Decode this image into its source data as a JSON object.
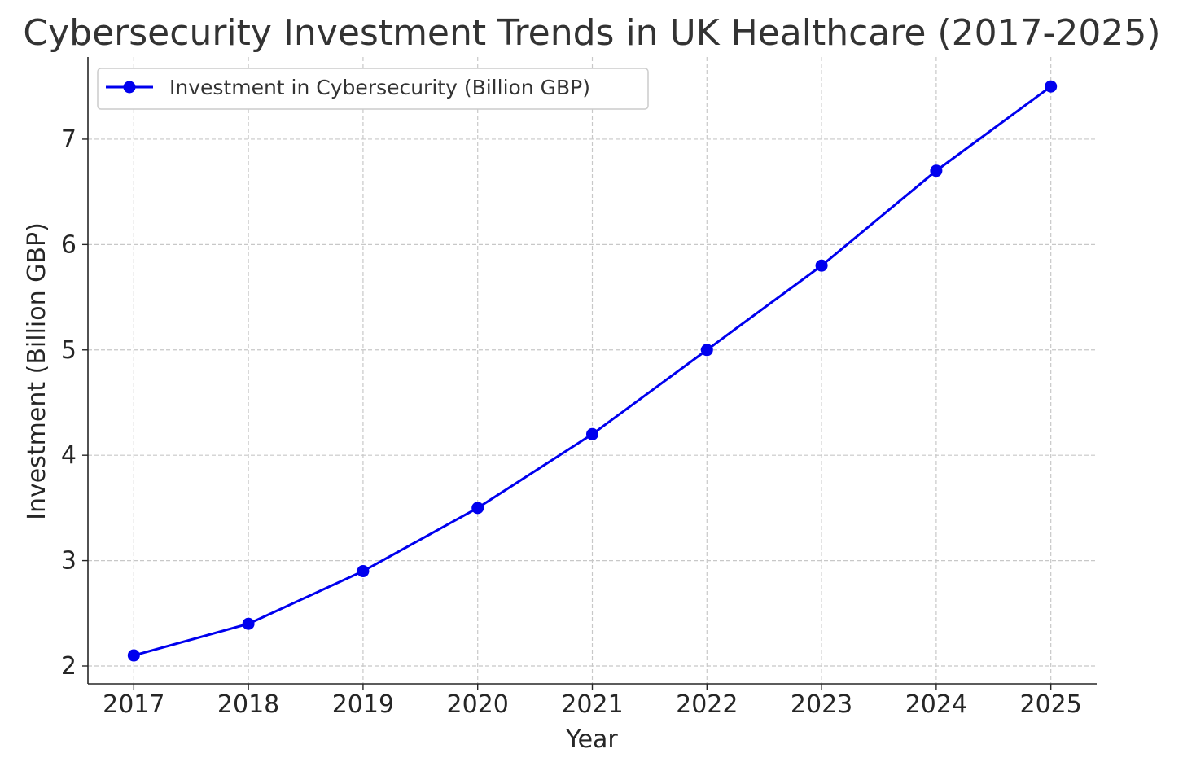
{
  "chart_data": {
    "type": "line",
    "title": "Cybersecurity Investment Trends in UK Healthcare (2017-2025)",
    "xlabel": "Year",
    "ylabel": "Investment (Billion GBP)",
    "x": [
      2017,
      2018,
      2019,
      2020,
      2021,
      2022,
      2023,
      2024,
      2025
    ],
    "x_tick_labels": [
      "2017",
      "2018",
      "2019",
      "2020",
      "2021",
      "2022",
      "2023",
      "2024",
      "2025"
    ],
    "y_ticks": [
      2,
      3,
      4,
      5,
      6,
      7
    ],
    "y_tick_labels": [
      "2",
      "3",
      "4",
      "5",
      "6",
      "7"
    ],
    "ylim": [
      1.83,
      7.78
    ],
    "xlim": [
      2016.6,
      2025.4
    ],
    "grid": true,
    "legend_position": "top-left",
    "series": [
      {
        "name": "Investment in Cybersecurity (Billion GBP)",
        "color": "#0000ee",
        "marker": "circle",
        "values": [
          2.1,
          2.4,
          2.9,
          3.5,
          4.2,
          5.0,
          5.8,
          6.7,
          7.5
        ]
      }
    ]
  }
}
